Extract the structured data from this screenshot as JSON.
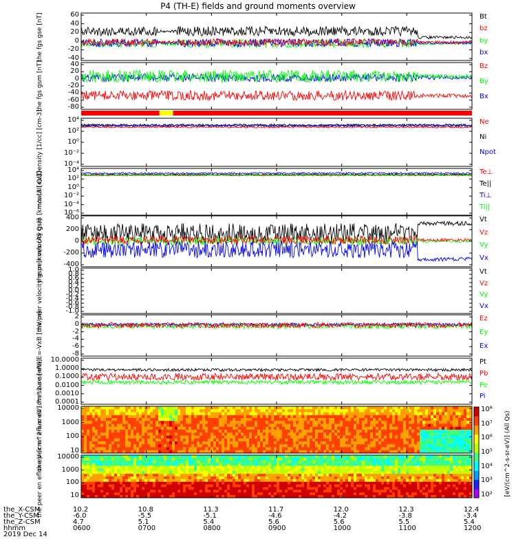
{
  "title": "P4 (TH-E) fields and ground moments overview",
  "date": "2019 Dec 14",
  "ephemeris": {
    "row_labels": [
      "the_X-CSM",
      "the_Y-CSM",
      "the_Z-CSM",
      "hhmm"
    ],
    "columns": [
      {
        "x": "10.2",
        "y": "-6.0",
        "z": "4.7",
        "t": "0600"
      },
      {
        "x": "10.8",
        "y": "-5.5",
        "z": "5.1",
        "t": "0700"
      },
      {
        "x": "11.3",
        "y": "-5.1",
        "z": "5.4",
        "t": "0800"
      },
      {
        "x": "11.7",
        "y": "-4.6",
        "z": "5.6",
        "t": "0900"
      },
      {
        "x": "12.0",
        "y": "-4.2",
        "z": "5.6",
        "t": "1000"
      },
      {
        "x": "12.3",
        "y": "-3.8",
        "z": "5.5",
        "t": "1100"
      },
      {
        "x": "12.4",
        "y": "-3.4",
        "z": "5.4",
        "t": "1200"
      }
    ]
  },
  "colors": {
    "black": "#000000",
    "red": "#ff0000",
    "green": "#00ff00",
    "blue": "#0000ff",
    "yellow": "#ffff00"
  },
  "chart_data": [
    {
      "type": "line",
      "ylabel": "the fgs gse [nT]",
      "ylim": [
        -40,
        60
      ],
      "yticks": [
        "60",
        "40",
        "20",
        "0",
        "-20",
        "-40"
      ],
      "series": [
        {
          "name": "Bt",
          "color": "black"
        },
        {
          "name": "bz",
          "color": "red"
        },
        {
          "name": "by",
          "color": "green"
        },
        {
          "name": "bx",
          "color": "blue"
        }
      ]
    },
    {
      "type": "line",
      "ylabel": "the fgs gsm [nT]",
      "ylim": [
        -80,
        40
      ],
      "yticks": [
        "40",
        "20",
        "0",
        "-20",
        "-40",
        "-60",
        "-80"
      ],
      "series": [
        {
          "name": "Bz",
          "color": "red"
        },
        {
          "name": "By",
          "color": "green"
        },
        {
          "name": "Bx",
          "color": "blue"
        }
      ]
    },
    {
      "type": "line",
      "ylabel": "Density [1/cc] [cm-3]",
      "scale": "log",
      "yticks": [
        "10⁴",
        "10²",
        "10⁰",
        "10⁻²",
        "10⁻⁴"
      ],
      "series": [
        {
          "name": "Ne",
          "color": "red"
        },
        {
          "name": "Ni",
          "color": "black"
        },
        {
          "name": "Npot",
          "color": "blue"
        }
      ]
    },
    {
      "type": "line",
      "ylabel": "moat3 [eV]",
      "scale": "log",
      "yticks": [
        "10⁴",
        "10²",
        "10⁰",
        "10⁻²",
        "10⁻⁴",
        "10⁻⁶"
      ],
      "series": [
        {
          "name": "Te⊥",
          "color": "red"
        },
        {
          "name": "Te||",
          "color": "black"
        },
        {
          "name": "Ti⊥",
          "color": "blue"
        },
        {
          "name": "Ti||",
          "color": "green"
        }
      ]
    },
    {
      "type": "line",
      "ylabel": "the peir velocity gsm [km/s (All Qs)]",
      "ylim": [
        -400,
        400
      ],
      "yticks": [
        "400",
        "200",
        "0",
        "-200",
        "-400"
      ],
      "series": [
        {
          "name": "Vt",
          "color": "black"
        },
        {
          "name": "Vz",
          "color": "red"
        },
        {
          "name": "Vy",
          "color": "green"
        },
        {
          "name": "Vx",
          "color": "blue"
        }
      ]
    },
    {
      "type": "line",
      "ylabel": "the peer velocity gsm [km/s (All Qs)]",
      "ylim": [
        -1,
        1
      ],
      "yticks": [
        "1.0",
        "0.8",
        "0.6",
        "0.4",
        "0.2",
        "0.0",
        "-0.2",
        "-0.4",
        "-0.6",
        "-0.8",
        "-1.0"
      ],
      "series": [
        {
          "name": "Vt",
          "color": "black"
        },
        {
          "name": "Vz",
          "color": "red"
        },
        {
          "name": "Vy",
          "color": "green"
        },
        {
          "name": "Vx",
          "color": "blue"
        }
      ]
    },
    {
      "type": "line",
      "ylabel": "E=-VxB [mV/m]",
      "ylim": [
        -8,
        2
      ],
      "yticks": [
        "2",
        "0",
        "-2",
        "-4",
        "-6",
        "-8"
      ],
      "series": [
        {
          "name": "Ez",
          "color": "red"
        },
        {
          "name": "Ey",
          "color": "green"
        },
        {
          "name": "Ex",
          "color": "blue"
        }
      ]
    },
    {
      "type": "line",
      "ylabel": "Pressure [nPa]",
      "scale": "log",
      "yticks": [
        "10.0000",
        "1.0000",
        "0.1000",
        "0.0100",
        "0.0010",
        "0.0001"
      ],
      "series": [
        {
          "name": "Pt",
          "color": "black"
        },
        {
          "name": "Pb",
          "color": "red"
        },
        {
          "name": "Pe",
          "color": "green"
        },
        {
          "name": "Pi",
          "color": "blue"
        }
      ]
    },
    {
      "type": "heatmap",
      "ylabel": "the peir en eflux eV (cm^2-s-sr-eV)",
      "yticks": [
        "10000",
        "1000",
        "100",
        "10"
      ]
    },
    {
      "type": "heatmap",
      "ylabel": "the peer en eflux eV (cm^2-s-sr-eV)",
      "yticks": [
        "10000",
        "1000",
        "100",
        "10"
      ]
    }
  ],
  "colorbar": {
    "ticks": [
      "10⁸",
      "10⁷",
      "10⁶",
      "10⁵",
      "10⁴",
      "10³",
      "10²"
    ],
    "label": "[eV/(cm^2-s-sr-eV)] (All Qs)"
  }
}
